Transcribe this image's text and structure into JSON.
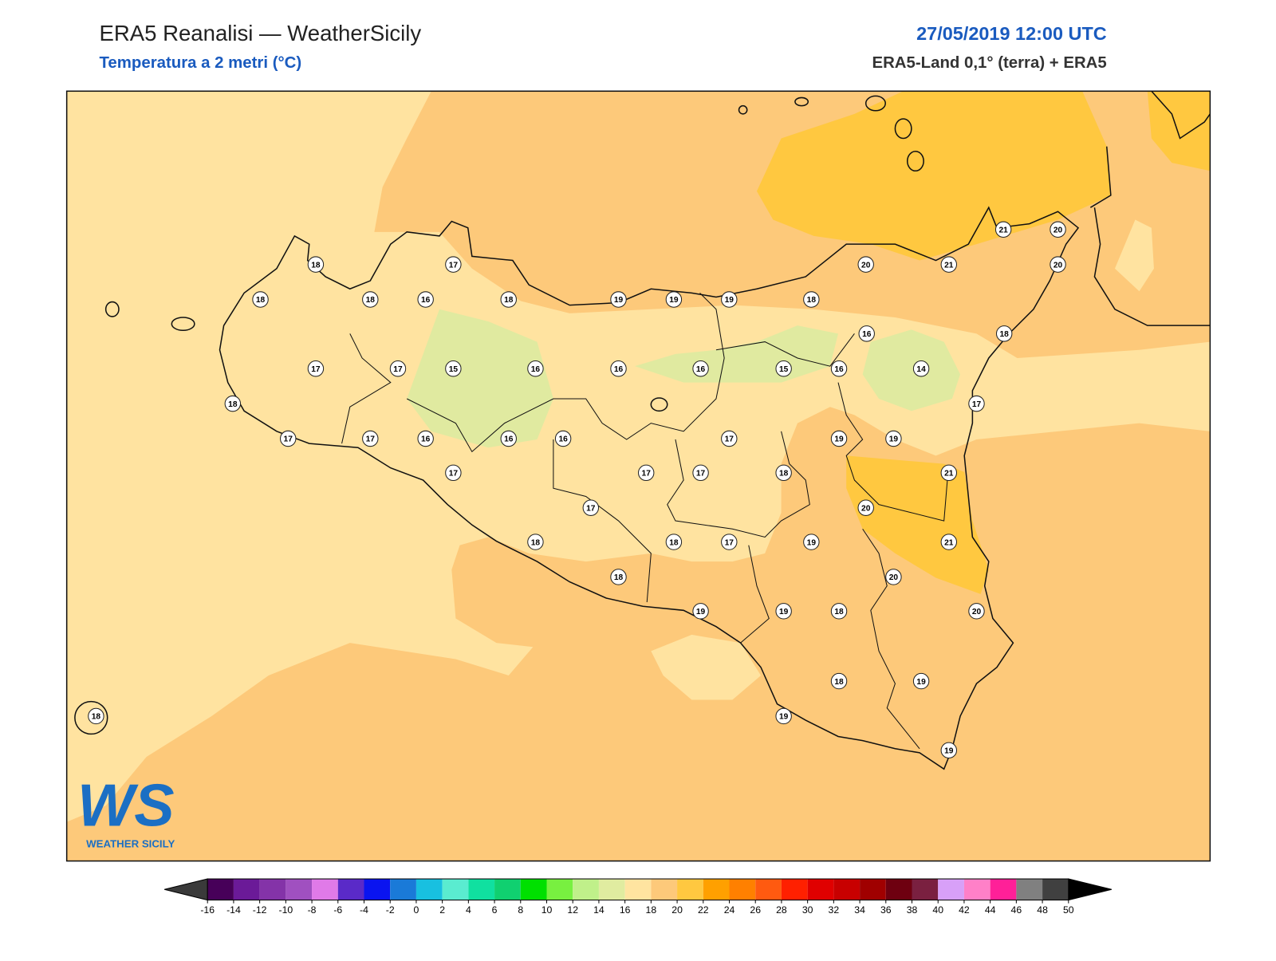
{
  "header": {
    "title": "ERA5 Reanalisi — WeatherSicily",
    "subtitle": "Temperatura a 2 metri (°C)",
    "date": "27/05/2019 12:00 UTC",
    "source": "ERA5-Land 0,1° (terra) + ERA5"
  },
  "stations": [
    18,
    17,
    18,
    18,
    16,
    18,
    19,
    19,
    19,
    18,
    20,
    21,
    21,
    20,
    20,
    18,
    16,
    17,
    17,
    15,
    16,
    16,
    16,
    15,
    16,
    14,
    18,
    17,
    17,
    17,
    16,
    16,
    16,
    17,
    19,
    19,
    17,
    17,
    17,
    18,
    21,
    17,
    20,
    18,
    18,
    17,
    19,
    21,
    18,
    20,
    19,
    19,
    18,
    20,
    18,
    19,
    19,
    19,
    18
  ],
  "colorbar": {
    "ticks": [
      -16,
      -14,
      -12,
      -10,
      -8,
      -6,
      -4,
      -2,
      0,
      2,
      4,
      6,
      8,
      10,
      12,
      14,
      16,
      18,
      20,
      22,
      24,
      26,
      28,
      30,
      32,
      34,
      36,
      38,
      40,
      42,
      44,
      46,
      48,
      50
    ],
    "colors": [
      "#470059",
      "#6b1a98",
      "#8433a8",
      "#a050c0",
      "#e07ae8",
      "#5a2ac8",
      "#0a14f0",
      "#1a7ad8",
      "#18c0e0",
      "#5aecd0",
      "#10e0a0",
      "#10d070",
      "#00e000",
      "#78f040",
      "#c0f08a",
      "#e0eca0",
      "#ffe4a0",
      "#fdc97a",
      "#ffc840",
      "#ffa000",
      "#ff8000",
      "#ff5a10",
      "#ff2000",
      "#e00000",
      "#c80000",
      "#a00000",
      "#6e0010",
      "#7a2040",
      "#d8a0f8",
      "#ff80c8",
      "#ff2098",
      "#808080",
      "#404040"
    ],
    "under": "#3a3a3a",
    "over": "#000000"
  },
  "logo": {
    "mark": "WS",
    "name": "WEATHER SICILY"
  }
}
